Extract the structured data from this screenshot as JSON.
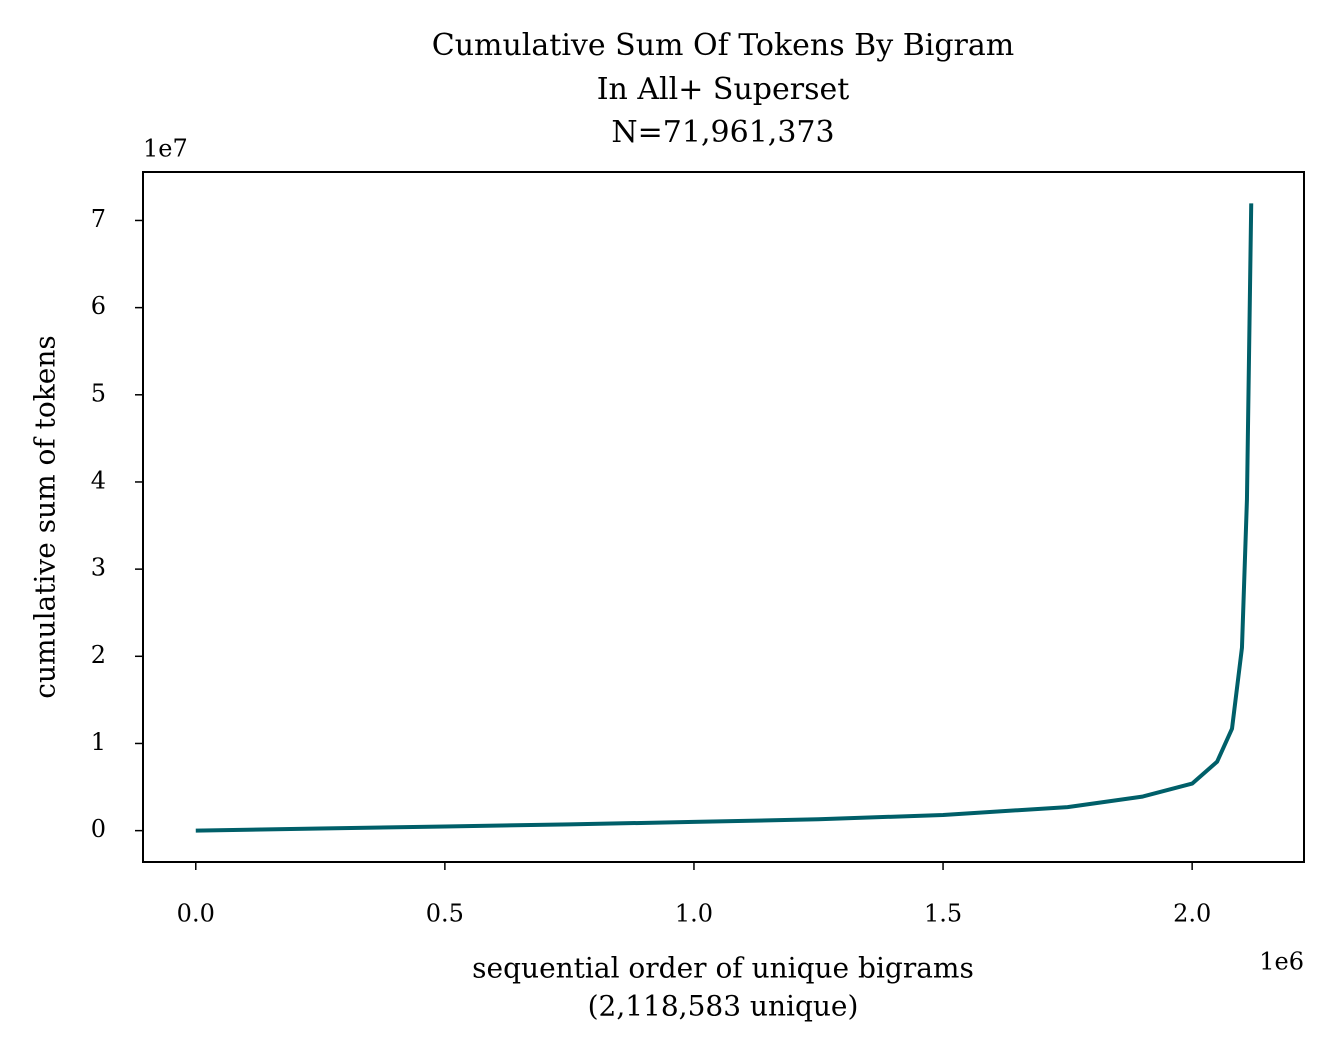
{
  "chart_data": {
    "type": "line",
    "title": [
      "Cumulative Sum Of Tokens By Bigram",
      "In All+ Superset",
      "N=71,961,373"
    ],
    "xlabel": [
      "sequential order of unique bigrams",
      "(2,118,583 unique)"
    ],
    "ylabel": "cumulative sum of tokens",
    "x_offset_label": "1e6",
    "y_offset_label": "1e7",
    "color": "#005f69",
    "x": [
      0,
      250000,
      500000,
      750000,
      1000000,
      1250000,
      1500000,
      1750000,
      1900000,
      2000000,
      2050000,
      2080000,
      2100000,
      2110000,
      2118583
    ],
    "values": [
      0,
      250000,
      480000,
      720000,
      1000000,
      1300000,
      1800000,
      2700000,
      3900000,
      5400000,
      7900000,
      11700000,
      21000000,
      38000000,
      71961373
    ],
    "xlim": [
      -105929,
      2224512
    ],
    "ylim": [
      -3598069,
      75559442
    ],
    "xticks": [
      {
        "value": 0,
        "label": "0.0"
      },
      {
        "value": 500000,
        "label": "0.5"
      },
      {
        "value": 1000000,
        "label": "1.0"
      },
      {
        "value": 1500000,
        "label": "1.5"
      },
      {
        "value": 2000000,
        "label": "2.0"
      }
    ],
    "yticks": [
      {
        "value": 0,
        "label": "0"
      },
      {
        "value": 10000000,
        "label": "1"
      },
      {
        "value": 20000000,
        "label": "2"
      },
      {
        "value": 30000000,
        "label": "3"
      },
      {
        "value": 40000000,
        "label": "4"
      },
      {
        "value": 50000000,
        "label": "5"
      },
      {
        "value": 60000000,
        "label": "6"
      },
      {
        "value": 70000000,
        "label": "7"
      }
    ]
  }
}
